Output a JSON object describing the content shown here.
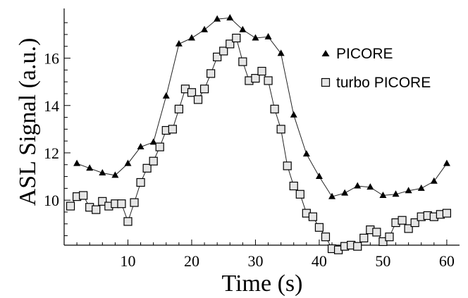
{
  "chart_data": {
    "type": "line",
    "xlabel": "Time (s)",
    "ylabel": "ASL Signal (a.u.)",
    "xlim": [
      0,
      62
    ],
    "ylim": [
      8.1,
      18.1
    ],
    "x_axis_at": 8.1,
    "xticks": [
      10,
      20,
      30,
      40,
      50,
      60
    ],
    "yticks": [
      10,
      12,
      14,
      16
    ],
    "series": [
      {
        "name": "PICORE",
        "marker": "triangle",
        "color": "#000000",
        "x": [
          2,
          4,
          6,
          8,
          10,
          12,
          14,
          16,
          18,
          20,
          22,
          24,
          26,
          28,
          30,
          32,
          34,
          36,
          38,
          40,
          42,
          44,
          46,
          48,
          50,
          52,
          54,
          56,
          58,
          60
        ],
        "y": [
          11.55,
          11.35,
          11.15,
          11.05,
          11.55,
          12.25,
          12.45,
          14.4,
          16.6,
          16.85,
          17.2,
          17.65,
          17.7,
          17.2,
          16.85,
          16.9,
          16.2,
          13.6,
          11.95,
          11.0,
          10.15,
          10.3,
          10.6,
          10.55,
          10.2,
          10.25,
          10.4,
          10.5,
          10.8,
          11.55
        ]
      },
      {
        "name": "turbo PICORE",
        "marker": "square",
        "color": "#000000",
        "x": [
          1,
          2,
          3,
          4,
          5,
          6,
          7,
          8,
          9,
          10,
          11,
          12,
          13,
          14,
          15,
          16,
          17,
          18,
          19,
          20,
          21,
          22,
          23,
          24,
          25,
          26,
          27,
          28,
          29,
          30,
          31,
          32,
          33,
          34,
          35,
          36,
          37,
          38,
          39,
          40,
          41,
          42,
          43,
          44,
          45,
          46,
          47,
          48,
          49,
          50,
          51,
          52,
          53,
          54,
          55,
          56,
          57,
          58,
          59,
          60
        ],
        "y": [
          9.75,
          10.15,
          10.2,
          9.7,
          9.6,
          9.95,
          9.75,
          9.85,
          9.85,
          9.1,
          9.9,
          10.75,
          11.35,
          11.65,
          12.25,
          12.95,
          13.0,
          13.85,
          14.7,
          14.55,
          14.25,
          14.7,
          15.35,
          16.05,
          16.3,
          16.6,
          16.85,
          15.85,
          15.05,
          15.15,
          15.45,
          15.05,
          13.85,
          13.0,
          11.45,
          10.6,
          10.25,
          9.45,
          9.3,
          8.85,
          8.45,
          7.95,
          7.9,
          8.05,
          8.1,
          8.05,
          8.4,
          8.75,
          8.65,
          8.25,
          8.45,
          9.05,
          9.15,
          8.8,
          9.05,
          9.3,
          9.35,
          9.3,
          9.4,
          9.45
        ]
      }
    ],
    "legend_position": "top-right",
    "grid": false
  }
}
